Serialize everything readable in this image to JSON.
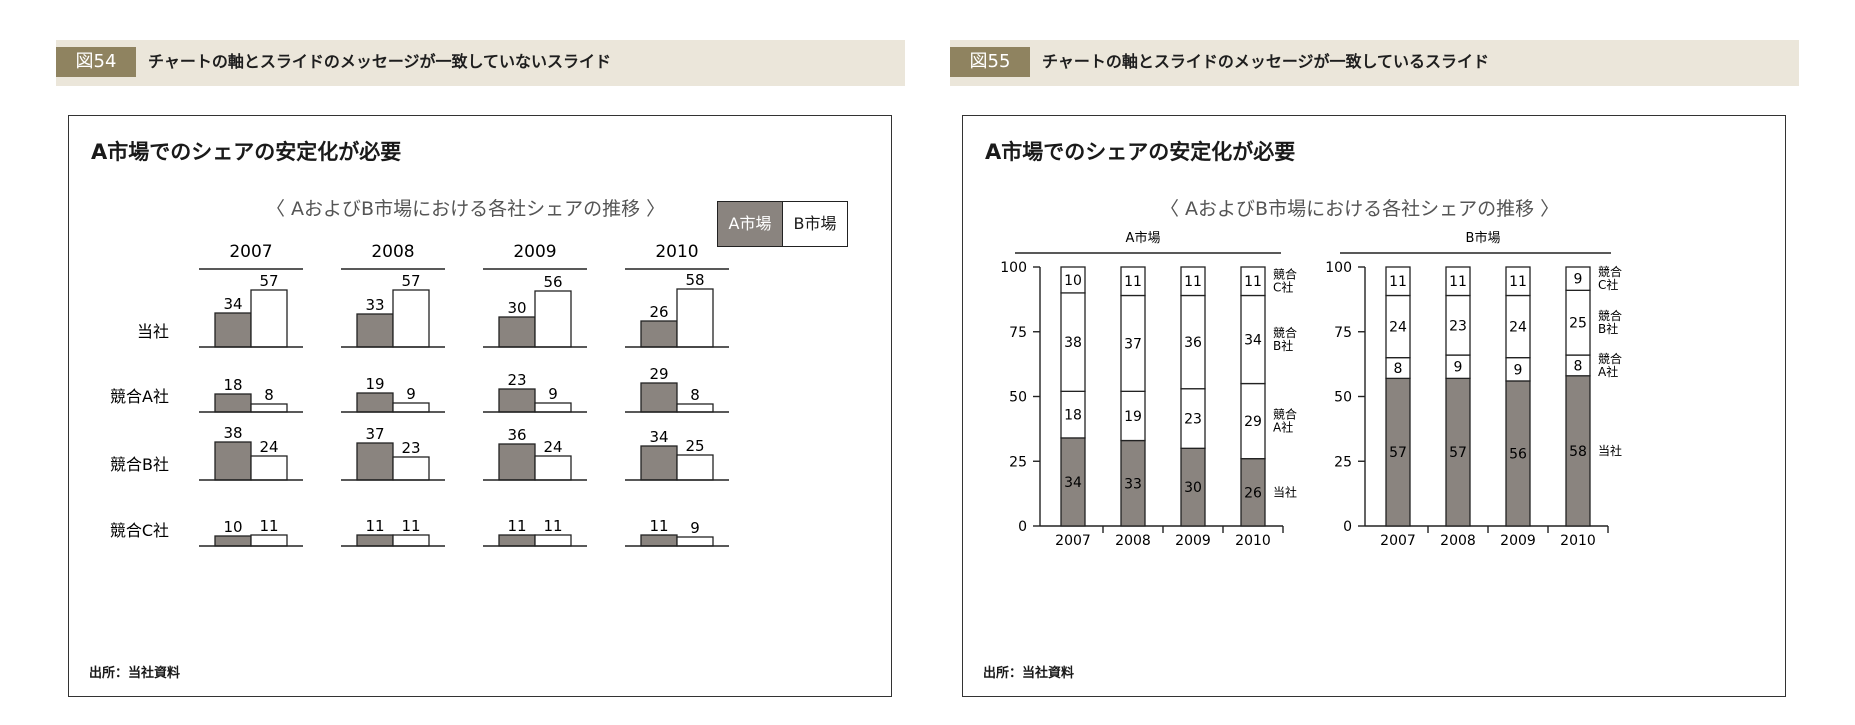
{
  "fig54": {
    "label": "図54",
    "title": "チャートの軸とスライドのメッセージが一致していないスライド",
    "card_title": "A市場でのシェアの安定化が必要",
    "subtitle": "〈 AおよびB市場における各社シェアの推移 〉",
    "legend_a": "A市場",
    "legend_b": "B市場",
    "source": "出所：当社資料"
  },
  "fig55": {
    "label": "図55",
    "title": "チャートの軸とスライドのメッセージが一致しているスライド",
    "card_title": "A市場でのシェアの安定化が必要",
    "subtitle": "〈 AおよびB市場における各社シェアの推移 〉",
    "source": "出所：当社資料"
  },
  "colors": {
    "market_a": "#8a847f",
    "market_b": "#ffffff",
    "header_bg": "#ebe6da",
    "label_bg": "#8f8360"
  },
  "chart_data": [
    {
      "type": "bar",
      "figure": "図54",
      "years": [
        "2007",
        "2008",
        "2009",
        "2010"
      ],
      "companies": [
        "当社",
        "競合A社",
        "競合B社",
        "競合C社"
      ],
      "series": [
        {
          "name": "A市場",
          "values": [
            [
              34,
              33,
              30,
              26
            ],
            [
              18,
              19,
              23,
              29
            ],
            [
              38,
              37,
              36,
              34
            ],
            [
              10,
              11,
              11,
              11
            ]
          ]
        },
        {
          "name": "B市場",
          "values": [
            [
              57,
              57,
              56,
              58
            ],
            [
              8,
              9,
              9,
              8
            ],
            [
              24,
              23,
              24,
              25
            ],
            [
              11,
              11,
              11,
              9
            ]
          ]
        }
      ],
      "legend": "top-right"
    },
    {
      "type": "bar",
      "stacked": true,
      "figure": "図55",
      "title": "A市場",
      "categories": [
        "2007",
        "2008",
        "2009",
        "2010"
      ],
      "ylim": [
        0,
        100
      ],
      "yticks": [
        0,
        25,
        50,
        75,
        100
      ],
      "series": [
        {
          "name": "当社",
          "values": [
            34,
            33,
            30,
            26
          ]
        },
        {
          "name": "競合A社",
          "values": [
            18,
            19,
            23,
            29
          ]
        },
        {
          "name": "競合B社",
          "values": [
            38,
            37,
            36,
            34
          ]
        },
        {
          "name": "競合C社",
          "values": [
            10,
            11,
            11,
            11
          ]
        }
      ],
      "series_labels": [
        [
          "当社"
        ],
        [
          "競合",
          "A社"
        ],
        [
          "競合",
          "B社"
        ],
        [
          "競合",
          "C社"
        ]
      ]
    },
    {
      "type": "bar",
      "stacked": true,
      "figure": "図55",
      "title": "B市場",
      "categories": [
        "2007",
        "2008",
        "2009",
        "2010"
      ],
      "ylim": [
        0,
        100
      ],
      "yticks": [
        0,
        25,
        50,
        75,
        100
      ],
      "series": [
        {
          "name": "当社",
          "values": [
            57,
            57,
            56,
            58
          ]
        },
        {
          "name": "競合A社",
          "values": [
            8,
            9,
            9,
            8
          ]
        },
        {
          "name": "競合B社",
          "values": [
            24,
            23,
            24,
            25
          ]
        },
        {
          "name": "競合C社",
          "values": [
            11,
            11,
            11,
            9
          ]
        }
      ],
      "series_labels": [
        [
          "当社"
        ],
        [
          "競合",
          "A社"
        ],
        [
          "競合",
          "B社"
        ],
        [
          "競合",
          "C社"
        ]
      ]
    }
  ]
}
